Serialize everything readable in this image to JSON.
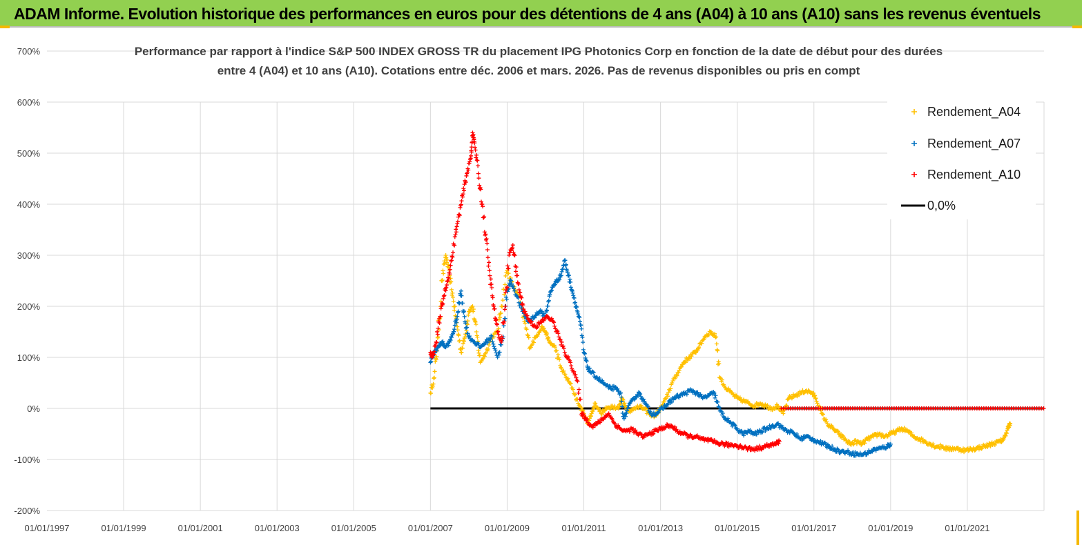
{
  "header": {
    "title": "ADAM Informe. Evolution historique des performances en euros pour des détentions de 4 ans (A04) à 10 ans (A10) sans les revenus éventuels"
  },
  "chart_data": {
    "type": "scatter",
    "title_line1": "Performance par rapport à l'indice S&P 500 INDEX GROSS TR  du placement IPG Photonics Corp en fonction de la date de début pour des durées",
    "title_line2": "entre 4 (A04) et 10 ans (A10). Cotations entre déc. 2006 et mars. 2026. Pas de revenus disponibles ou pris en compt",
    "x_tick_labels": [
      "01/01/1997",
      "01/01/1999",
      "01/01/2001",
      "01/01/2003",
      "01/01/2005",
      "01/01/2007",
      "01/01/2009",
      "01/01/2011",
      "01/01/2013",
      "01/01/2015",
      "01/01/2017",
      "01/01/2019",
      "01/01/2021"
    ],
    "x_range": [
      1997.0,
      2023.0
    ],
    "y_tick_labels": [
      "700%",
      "600%",
      "500%",
      "400%",
      "300%",
      "200%",
      "100%",
      "0%",
      "-100%",
      "-200%"
    ],
    "y_range": [
      -200,
      700
    ],
    "colors": {
      "A04": "#ffc000",
      "A07": "#0070c0",
      "A10": "#ff0000",
      "zero": "#000000"
    },
    "legend_position": "top-right",
    "series": [
      {
        "name": "Rendement_A04",
        "marker": "+",
        "points": [
          [
            2007.0,
            30
          ],
          [
            2007.1,
            60
          ],
          [
            2007.2,
            140
          ],
          [
            2007.3,
            250
          ],
          [
            2007.4,
            300
          ],
          [
            2007.5,
            260
          ],
          [
            2007.6,
            210
          ],
          [
            2007.7,
            160
          ],
          [
            2007.8,
            110
          ],
          [
            2007.9,
            140
          ],
          [
            2008.0,
            190
          ],
          [
            2008.1,
            200
          ],
          [
            2008.2,
            150
          ],
          [
            2008.3,
            90
          ],
          [
            2008.45,
            110
          ],
          [
            2008.6,
            140
          ],
          [
            2008.75,
            150
          ],
          [
            2008.85,
            200
          ],
          [
            2009.0,
            270
          ],
          [
            2009.15,
            240
          ],
          [
            2009.3,
            220
          ],
          [
            2009.45,
            170
          ],
          [
            2009.6,
            120
          ],
          [
            2009.75,
            140
          ],
          [
            2009.9,
            160
          ],
          [
            2010.0,
            150
          ],
          [
            2010.1,
            130
          ],
          [
            2010.25,
            120
          ],
          [
            2010.4,
            80
          ],
          [
            2010.55,
            60
          ],
          [
            2010.7,
            40
          ],
          [
            2010.85,
            10
          ],
          [
            2011.0,
            -10
          ],
          [
            2011.1,
            -30
          ],
          [
            2011.2,
            -10
          ],
          [
            2011.3,
            10
          ],
          [
            2011.45,
            -10
          ],
          [
            2011.6,
            0
          ],
          [
            2011.75,
            5
          ],
          [
            2011.9,
            0
          ],
          [
            2012.0,
            20
          ],
          [
            2012.1,
            0
          ],
          [
            2012.25,
            -5
          ],
          [
            2012.4,
            5
          ],
          [
            2012.55,
            0
          ],
          [
            2012.7,
            -10
          ],
          [
            2012.85,
            -15
          ],
          [
            2013.0,
            0
          ],
          [
            2013.15,
            20
          ],
          [
            2013.3,
            50
          ],
          [
            2013.45,
            70
          ],
          [
            2013.6,
            90
          ],
          [
            2013.75,
            100
          ],
          [
            2013.9,
            110
          ],
          [
            2014.0,
            120
          ],
          [
            2014.15,
            140
          ],
          [
            2014.3,
            150
          ],
          [
            2014.45,
            140
          ],
          [
            2014.55,
            60
          ],
          [
            2014.7,
            40
          ],
          [
            2014.85,
            30
          ],
          [
            2015.0,
            20
          ],
          [
            2015.15,
            15
          ],
          [
            2015.3,
            10
          ],
          [
            2015.45,
            5
          ],
          [
            2015.6,
            10
          ],
          [
            2015.75,
            5
          ],
          [
            2015.9,
            0
          ],
          [
            2016.05,
            5
          ],
          [
            2016.2,
            -10
          ],
          [
            2016.35,
            20
          ],
          [
            2016.5,
            25
          ],
          [
            2016.65,
            30
          ],
          [
            2016.8,
            35
          ],
          [
            2016.95,
            30
          ],
          [
            2017.05,
            20
          ],
          [
            2017.2,
            -10
          ],
          [
            2017.35,
            -30
          ],
          [
            2017.5,
            -40
          ],
          [
            2017.65,
            -50
          ],
          [
            2017.8,
            -60
          ],
          [
            2017.95,
            -70
          ],
          [
            2018.1,
            -65
          ],
          [
            2018.25,
            -70
          ],
          [
            2018.4,
            -60
          ],
          [
            2018.55,
            -55
          ],
          [
            2018.7,
            -50
          ],
          [
            2018.85,
            -55
          ],
          [
            2019.0,
            -50
          ],
          [
            2019.15,
            -45
          ],
          [
            2019.3,
            -40
          ],
          [
            2019.45,
            -45
          ],
          [
            2019.6,
            -55
          ],
          [
            2019.75,
            -60
          ],
          [
            2019.9,
            -65
          ],
          [
            2020.05,
            -70
          ],
          [
            2020.2,
            -75
          ],
          [
            2020.35,
            -75
          ],
          [
            2020.5,
            -80
          ],
          [
            2020.65,
            -78
          ],
          [
            2020.8,
            -80
          ],
          [
            2020.95,
            -82
          ],
          [
            2021.1,
            -80
          ],
          [
            2021.25,
            -78
          ],
          [
            2021.4,
            -75
          ],
          [
            2021.55,
            -72
          ],
          [
            2021.7,
            -68
          ],
          [
            2021.85,
            -65
          ],
          [
            2021.95,
            -60
          ],
          [
            2022.05,
            -40
          ],
          [
            2022.12,
            -30
          ]
        ]
      },
      {
        "name": "Rendement_A07",
        "marker": "+",
        "points": [
          [
            2007.0,
            90
          ],
          [
            2007.1,
            110
          ],
          [
            2007.2,
            120
          ],
          [
            2007.3,
            130
          ],
          [
            2007.4,
            120
          ],
          [
            2007.5,
            130
          ],
          [
            2007.6,
            150
          ],
          [
            2007.7,
            180
          ],
          [
            2007.8,
            230
          ],
          [
            2007.9,
            170
          ],
          [
            2008.0,
            140
          ],
          [
            2008.15,
            130
          ],
          [
            2008.3,
            120
          ],
          [
            2008.45,
            130
          ],
          [
            2008.6,
            140
          ],
          [
            2008.75,
            100
          ],
          [
            2008.9,
            140
          ],
          [
            2009.0,
            230
          ],
          [
            2009.1,
            250
          ],
          [
            2009.25,
            220
          ],
          [
            2009.4,
            190
          ],
          [
            2009.55,
            170
          ],
          [
            2009.7,
            180
          ],
          [
            2009.85,
            190
          ],
          [
            2010.0,
            180
          ],
          [
            2010.1,
            220
          ],
          [
            2010.2,
            240
          ],
          [
            2010.3,
            250
          ],
          [
            2010.4,
            260
          ],
          [
            2010.5,
            290
          ],
          [
            2010.6,
            260
          ],
          [
            2010.7,
            230
          ],
          [
            2010.8,
            200
          ],
          [
            2010.9,
            170
          ],
          [
            2011.0,
            110
          ],
          [
            2011.1,
            80
          ],
          [
            2011.2,
            70
          ],
          [
            2011.35,
            60
          ],
          [
            2011.5,
            50
          ],
          [
            2011.65,
            40
          ],
          [
            2011.8,
            40
          ],
          [
            2011.95,
            30
          ],
          [
            2012.05,
            -20
          ],
          [
            2012.15,
            0
          ],
          [
            2012.3,
            20
          ],
          [
            2012.45,
            30
          ],
          [
            2012.6,
            10
          ],
          [
            2012.75,
            -10
          ],
          [
            2012.9,
            -10
          ],
          [
            2013.05,
            0
          ],
          [
            2013.2,
            10
          ],
          [
            2013.35,
            20
          ],
          [
            2013.5,
            25
          ],
          [
            2013.65,
            30
          ],
          [
            2013.8,
            35
          ],
          [
            2013.95,
            30
          ],
          [
            2014.1,
            20
          ],
          [
            2014.25,
            25
          ],
          [
            2014.4,
            30
          ],
          [
            2014.55,
            -5
          ],
          [
            2014.7,
            -20
          ],
          [
            2014.85,
            -30
          ],
          [
            2015.0,
            -40
          ],
          [
            2015.15,
            -50
          ],
          [
            2015.3,
            -45
          ],
          [
            2015.45,
            -50
          ],
          [
            2015.6,
            -45
          ],
          [
            2015.75,
            -40
          ],
          [
            2015.9,
            -35
          ],
          [
            2016.05,
            -30
          ],
          [
            2016.2,
            -40
          ],
          [
            2016.35,
            -45
          ],
          [
            2016.5,
            -50
          ],
          [
            2016.65,
            -60
          ],
          [
            2016.8,
            -55
          ],
          [
            2016.95,
            -60
          ],
          [
            2017.1,
            -65
          ],
          [
            2017.25,
            -70
          ],
          [
            2017.4,
            -75
          ],
          [
            2017.55,
            -80
          ],
          [
            2017.7,
            -85
          ],
          [
            2017.85,
            -85
          ],
          [
            2018.0,
            -88
          ],
          [
            2018.15,
            -90
          ],
          [
            2018.3,
            -90
          ],
          [
            2018.45,
            -85
          ],
          [
            2018.6,
            -80
          ],
          [
            2018.75,
            -78
          ],
          [
            2018.9,
            -75
          ],
          [
            2019.0,
            -70
          ]
        ]
      },
      {
        "name": "Rendement_A10",
        "marker": "+",
        "points": [
          [
            2007.0,
            110
          ],
          [
            2007.05,
            100
          ],
          [
            2007.15,
            130
          ],
          [
            2007.25,
            180
          ],
          [
            2007.35,
            220
          ],
          [
            2007.45,
            250
          ],
          [
            2007.55,
            290
          ],
          [
            2007.65,
            340
          ],
          [
            2007.75,
            380
          ],
          [
            2007.85,
            420
          ],
          [
            2007.95,
            460
          ],
          [
            2008.05,
            490
          ],
          [
            2008.1,
            540
          ],
          [
            2008.15,
            520
          ],
          [
            2008.25,
            460
          ],
          [
            2008.35,
            400
          ],
          [
            2008.45,
            330
          ],
          [
            2008.55,
            260
          ],
          [
            2008.65,
            200
          ],
          [
            2008.75,
            150
          ],
          [
            2008.85,
            130
          ],
          [
            2008.95,
            200
          ],
          [
            2009.05,
            300
          ],
          [
            2009.15,
            320
          ],
          [
            2009.25,
            260
          ],
          [
            2009.35,
            220
          ],
          [
            2009.45,
            190
          ],
          [
            2009.6,
            170
          ],
          [
            2009.75,
            160
          ],
          [
            2009.9,
            170
          ],
          [
            2010.05,
            180
          ],
          [
            2010.2,
            170
          ],
          [
            2010.35,
            140
          ],
          [
            2010.5,
            110
          ],
          [
            2010.65,
            90
          ],
          [
            2010.8,
            60
          ],
          [
            2010.95,
            -10
          ],
          [
            2011.05,
            -20
          ],
          [
            2011.2,
            -35
          ],
          [
            2011.35,
            -30
          ],
          [
            2011.5,
            -20
          ],
          [
            2011.65,
            -10
          ],
          [
            2011.8,
            -30
          ],
          [
            2011.95,
            -40
          ],
          [
            2012.1,
            -45
          ],
          [
            2012.25,
            -40
          ],
          [
            2012.4,
            -50
          ],
          [
            2012.55,
            -55
          ],
          [
            2012.7,
            -50
          ],
          [
            2012.85,
            -45
          ],
          [
            2013.0,
            -40
          ],
          [
            2013.15,
            -35
          ],
          [
            2013.3,
            -35
          ],
          [
            2013.45,
            -45
          ],
          [
            2013.6,
            -50
          ],
          [
            2013.75,
            -55
          ],
          [
            2013.9,
            -55
          ],
          [
            2014.05,
            -60
          ],
          [
            2014.2,
            -62
          ],
          [
            2014.35,
            -65
          ],
          [
            2014.5,
            -68
          ],
          [
            2014.65,
            -70
          ],
          [
            2014.8,
            -72
          ],
          [
            2014.95,
            -72
          ],
          [
            2015.1,
            -75
          ],
          [
            2015.25,
            -78
          ],
          [
            2015.4,
            -80
          ],
          [
            2015.55,
            -78
          ],
          [
            2015.7,
            -75
          ],
          [
            2015.85,
            -72
          ],
          [
            2016.0,
            -70
          ],
          [
            2016.1,
            -65
          ]
        ]
      }
    ],
    "zero_line": {
      "name": "0,0%",
      "x_start": 2007.0,
      "x_end": 2023.0,
      "y": 0
    },
    "flat_red_segment": {
      "x_start": 2016.15,
      "x_end": 2023.0,
      "y": 0
    }
  }
}
